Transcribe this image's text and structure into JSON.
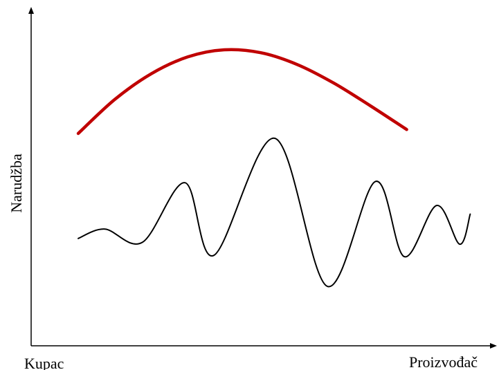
{
  "chart_data": {
    "type": "line",
    "ylabel": "Narudžba",
    "x_axis_start_label": "Kupac",
    "x_axis_end_label": "Proizvođač",
    "colors": {
      "axis": "#000000",
      "series_top": "#c00000",
      "series_bottom": "#000000"
    },
    "series": [
      {
        "points": [
          [
            0.0,
            0.0
          ],
          [
            0.0886,
            0.4057
          ],
          [
            0.1773,
            0.7132
          ],
          [
            0.2659,
            0.9149
          ],
          [
            0.3546,
            1.0
          ],
          [
            0.4432,
            0.9656
          ],
          [
            0.5318,
            0.824
          ],
          [
            0.6205,
            0.6024
          ],
          [
            0.7091,
            0.3325
          ],
          [
            0.7977,
            0.0467
          ]
        ]
      },
      {
        "points": [
          [
            0.0,
            -0.3529
          ],
          [
            0.0648,
            -0.2262
          ],
          [
            0.1558,
            -0.4057
          ],
          [
            0.2593,
            0.4004
          ],
          [
            0.3293,
            -0.5826
          ],
          [
            0.4776,
            1.0
          ],
          [
            0.6047,
            -1.0
          ],
          [
            0.7217,
            0.4171
          ],
          [
            0.7917,
            -0.5987
          ],
          [
            0.8705,
            0.0926
          ],
          [
            0.9264,
            -0.4313
          ],
          [
            0.9519,
            -0.0244
          ]
        ]
      }
    ]
  }
}
